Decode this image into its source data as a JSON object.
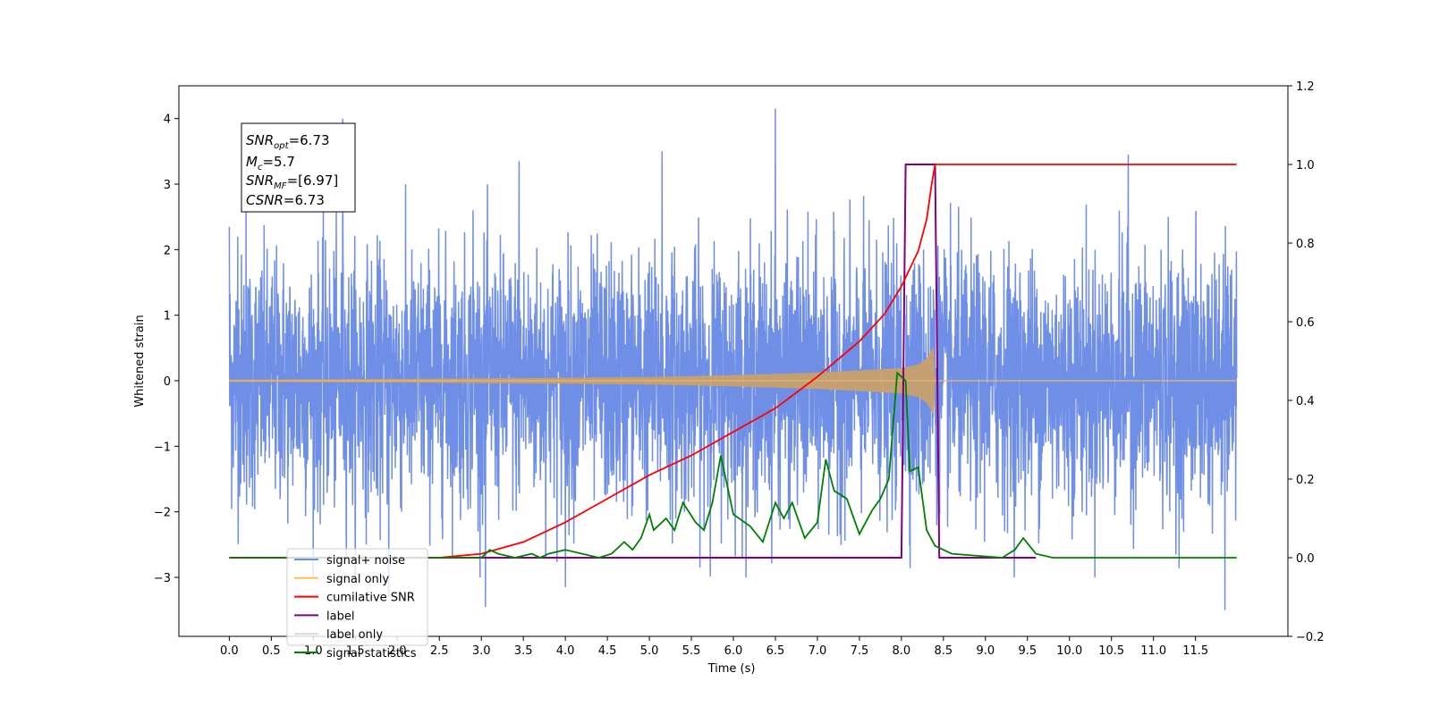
{
  "chart_data": {
    "type": "line",
    "xlabel": "Time (s)",
    "ylabel": "Whitened strain",
    "xlim": [
      -0.6,
      12.6
    ],
    "ylim": [
      -3.9,
      4.5
    ],
    "y2lim": [
      -0.2,
      1.2
    ],
    "x_ticks": [
      "0.0",
      "0.5",
      "1.0",
      "1.5",
      "2.0",
      "2.5",
      "3.0",
      "3.5",
      "4.0",
      "4.5",
      "5.0",
      "5.5",
      "6.0",
      "6.5",
      "7.0",
      "7.5",
      "8.0",
      "8.5",
      "9.0",
      "9.5",
      "10.0",
      "10.5",
      "11.0",
      "11.5"
    ],
    "y_ticks": [
      "−3",
      "−2",
      "−1",
      "0",
      "1",
      "2",
      "3",
      "4"
    ],
    "y2_ticks": [
      "−0.2",
      "0.0",
      "0.2",
      "0.4",
      "0.6",
      "0.8",
      "1.0",
      "1.2"
    ],
    "annotation": {
      "lines": [
        {
          "name": "SNR",
          "sub": "opt",
          "value": "=6.73"
        },
        {
          "name": "M",
          "sub": "c",
          "value": "=5.7"
        },
        {
          "name": "SNR",
          "sub": "MF",
          "value": "=[6.97]"
        },
        {
          "name": "CSNR",
          "sub": "",
          "value": "=6.73"
        }
      ]
    },
    "legend": {
      "placement": "lower-left",
      "entries": [
        {
          "label": "signal+ noise",
          "color": "#6f8ee6"
        },
        {
          "label": "signal only",
          "color": "#ffbe5c"
        },
        {
          "label": "cumilative SNR",
          "color": "#ff0000"
        },
        {
          "label": "label",
          "color": "#800080"
        },
        {
          "label": "label only",
          "color": "#d9d9d9"
        },
        {
          "label": "signal statistics",
          "color": "#008000"
        }
      ]
    },
    "series": [
      {
        "name": "signal+ noise",
        "axis": "left",
        "color": "#6f8ee6",
        "x_range": [
          0.0,
          11.99
        ],
        "amplitude_sd": 0.95,
        "peaks": [
          [
            0.0,
            2.35
          ],
          [
            0.1,
            2.2
          ],
          [
            0.2,
            2.75
          ],
          [
            1.35,
            4.0
          ],
          [
            2.9,
            2.6
          ],
          [
            3.45,
            3.35
          ],
          [
            4.0,
            -3.15
          ],
          [
            5.15,
            3.5
          ],
          [
            6.5,
            4.15
          ],
          [
            10.7,
            3.45
          ],
          [
            3.05,
            -3.45
          ],
          [
            11.85,
            -3.5
          ],
          [
            1.9,
            -3.3
          ],
          [
            6.5,
            -3.15
          ]
        ]
      },
      {
        "name": "signal only",
        "axis": "left",
        "color": "#c8a06e",
        "envelope": [
          [
            0.0,
            0.01
          ],
          [
            2.0,
            0.02
          ],
          [
            3.0,
            0.03
          ],
          [
            4.0,
            0.04
          ],
          [
            5.0,
            0.05
          ],
          [
            6.0,
            0.08
          ],
          [
            6.5,
            0.1
          ],
          [
            7.0,
            0.12
          ],
          [
            7.5,
            0.15
          ],
          [
            8.0,
            0.19
          ],
          [
            8.2,
            0.24
          ],
          [
            8.3,
            0.33
          ],
          [
            8.38,
            0.5
          ],
          [
            8.4,
            0.0
          ],
          [
            11.99,
            0.0
          ]
        ]
      },
      {
        "name": "cumilative SNR",
        "axis": "right",
        "color": "#ff0000",
        "points": [
          [
            0.0,
            0.0
          ],
          [
            2.5,
            0.0
          ],
          [
            3.0,
            0.01
          ],
          [
            3.5,
            0.04
          ],
          [
            4.0,
            0.09
          ],
          [
            4.5,
            0.15
          ],
          [
            5.0,
            0.21
          ],
          [
            5.5,
            0.26
          ],
          [
            6.0,
            0.32
          ],
          [
            6.5,
            0.38
          ],
          [
            7.0,
            0.46
          ],
          [
            7.5,
            0.55
          ],
          [
            7.8,
            0.62
          ],
          [
            8.0,
            0.69
          ],
          [
            8.2,
            0.78
          ],
          [
            8.3,
            0.86
          ],
          [
            8.36,
            0.95
          ],
          [
            8.4,
            1.0
          ],
          [
            11.99,
            1.0
          ]
        ]
      },
      {
        "name": "label",
        "axis": "right",
        "color": "#800080",
        "points": [
          [
            0.0,
            0.0
          ],
          [
            8.0,
            0.0
          ],
          [
            8.05,
            1.0
          ],
          [
            8.4,
            1.0
          ],
          [
            8.45,
            0.0
          ],
          [
            9.6,
            0.0
          ]
        ]
      },
      {
        "name": "signal statistics",
        "axis": "right",
        "color": "#008000",
        "points": [
          [
            0.0,
            0.0
          ],
          [
            3.0,
            0.0
          ],
          [
            3.1,
            0.02
          ],
          [
            3.2,
            0.01
          ],
          [
            3.4,
            0.0
          ],
          [
            3.6,
            0.01
          ],
          [
            3.7,
            0.0
          ],
          [
            3.8,
            0.01
          ],
          [
            4.0,
            0.02
          ],
          [
            4.2,
            0.01
          ],
          [
            4.4,
            0.0
          ],
          [
            4.55,
            0.01
          ],
          [
            4.7,
            0.04
          ],
          [
            4.8,
            0.02
          ],
          [
            4.9,
            0.05
          ],
          [
            5.0,
            0.11
          ],
          [
            5.05,
            0.07
          ],
          [
            5.2,
            0.1
          ],
          [
            5.3,
            0.07
          ],
          [
            5.4,
            0.14
          ],
          [
            5.55,
            0.09
          ],
          [
            5.65,
            0.07
          ],
          [
            5.75,
            0.14
          ],
          [
            5.85,
            0.26
          ],
          [
            6.0,
            0.11
          ],
          [
            6.2,
            0.08
          ],
          [
            6.35,
            0.04
          ],
          [
            6.5,
            0.14
          ],
          [
            6.6,
            0.1
          ],
          [
            6.7,
            0.14
          ],
          [
            6.85,
            0.05
          ],
          [
            7.0,
            0.09
          ],
          [
            7.1,
            0.25
          ],
          [
            7.2,
            0.17
          ],
          [
            7.35,
            0.15
          ],
          [
            7.5,
            0.06
          ],
          [
            7.65,
            0.12
          ],
          [
            7.75,
            0.15
          ],
          [
            7.85,
            0.2
          ],
          [
            7.95,
            0.47
          ],
          [
            8.05,
            0.45
          ],
          [
            8.1,
            0.22
          ],
          [
            8.2,
            0.23
          ],
          [
            8.3,
            0.07
          ],
          [
            8.4,
            0.03
          ],
          [
            8.6,
            0.01
          ],
          [
            9.2,
            0.0
          ],
          [
            9.35,
            0.02
          ],
          [
            9.45,
            0.05
          ],
          [
            9.6,
            0.01
          ],
          [
            9.8,
            0.0
          ],
          [
            11.99,
            0.0
          ]
        ]
      }
    ]
  }
}
